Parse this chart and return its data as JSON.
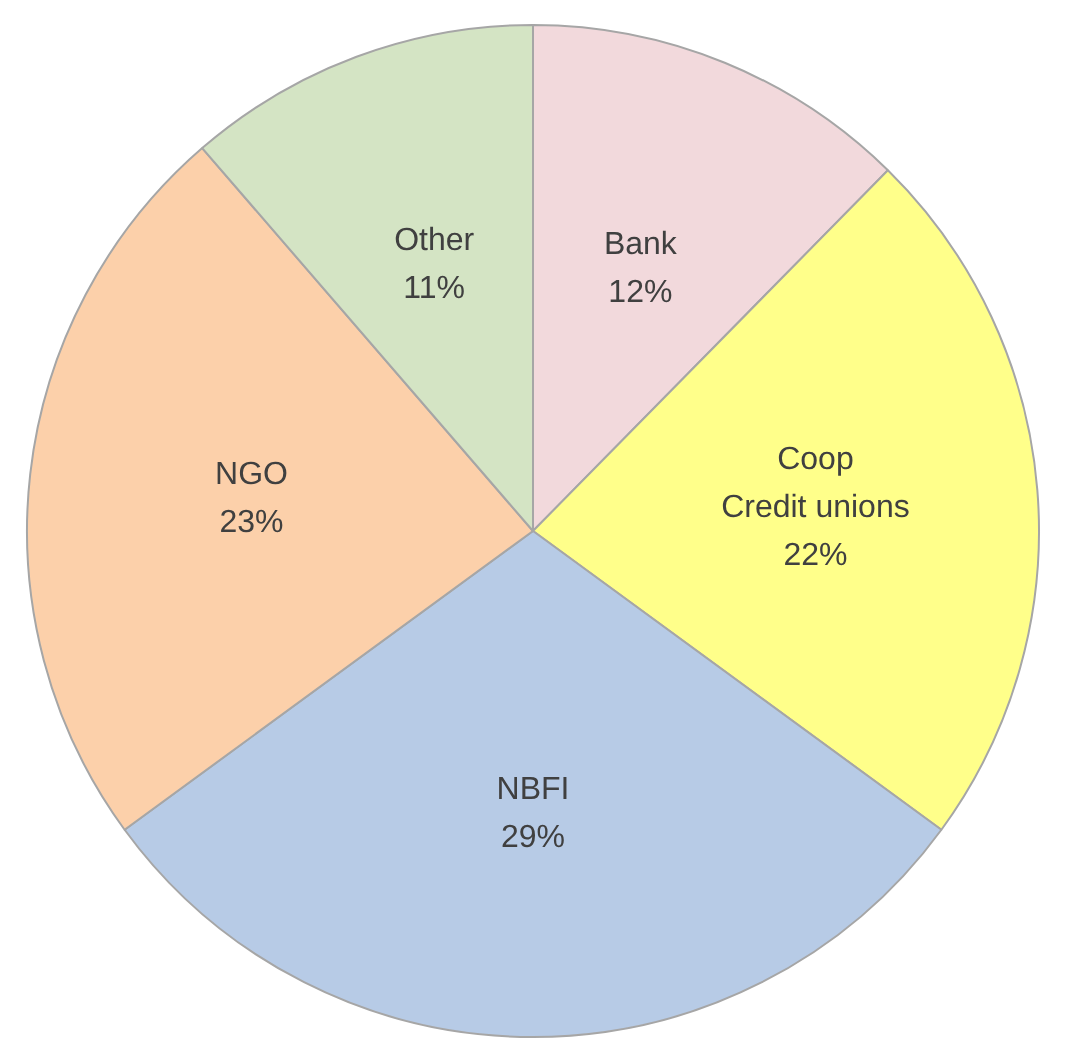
{
  "chart_data": {
    "type": "pie",
    "categories": [
      "Bank",
      "Coop\nCredit unions",
      "NBFI",
      "NGO",
      "Other"
    ],
    "values": [
      12,
      22,
      29,
      23,
      11
    ],
    "colors": [
      "#f2d9dc",
      "#ffff8a",
      "#b7cbe6",
      "#fcd0aa",
      "#d4e4c4"
    ],
    "value_labels": [
      "12%",
      "22%",
      "29%",
      "23%",
      "11%"
    ],
    "legend": false
  }
}
